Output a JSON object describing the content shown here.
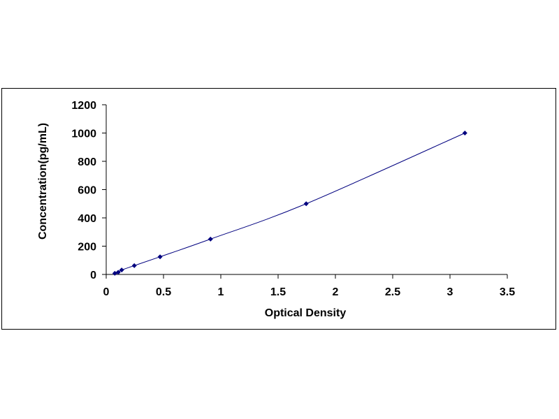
{
  "chart_data": {
    "type": "scatter",
    "title": "",
    "xlabel": "Optical Density",
    "ylabel": "Concentration(pg/mL)",
    "xlim": [
      0,
      3.5
    ],
    "ylim": [
      0,
      1200
    ],
    "x_ticks": [
      0,
      0.5,
      1,
      1.5,
      2,
      2.5,
      3,
      3.5
    ],
    "x_tick_labels": [
      "0",
      "0.5",
      "1",
      "1.5",
      "2",
      "2.5",
      "3",
      "3.5"
    ],
    "y_ticks": [
      0,
      200,
      400,
      600,
      800,
      1000,
      1200
    ],
    "y_tick_labels": [
      "0",
      "200",
      "400",
      "600",
      "800",
      "1000",
      "1200"
    ],
    "grid": false,
    "legend": false,
    "series": [
      {
        "marker": "diamond",
        "trendline": true,
        "x": [
          0.075,
          0.105,
          0.135,
          0.245,
          0.47,
          0.91,
          1.745,
          3.13
        ],
        "y": [
          7.8,
          15.6,
          31.25,
          62.5,
          125,
          250,
          500,
          1000
        ]
      }
    ],
    "colors": {
      "series": "#00007f",
      "axis": "#000000"
    }
  }
}
